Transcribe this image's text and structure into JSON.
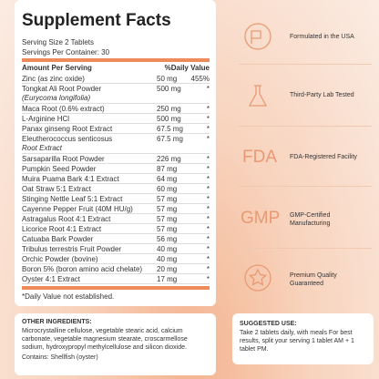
{
  "facts": {
    "title": "Supplement Facts",
    "serving_size": "Serving Size 2 Tablets",
    "servings": "Servings Per Container: 30",
    "header": {
      "amount": "Amount Per Serving",
      "dv": "%Daily Value"
    },
    "rows": [
      {
        "name": "Zinc (as zinc oxide)",
        "amount": "50 mg",
        "dv": "455%"
      },
      {
        "name": "Tongkat Ali Root Powder",
        "sub": "(Eurycoma longifolia)",
        "amount": "500 mg",
        "dv": "*"
      },
      {
        "name": "Maca Root (0.6% extract)",
        "amount": "250 mg",
        "dv": "*"
      },
      {
        "name": "L-Arginine HCl",
        "amount": "500 mg",
        "dv": "*"
      },
      {
        "name": "Panax ginseng Root Extract",
        "amount": "67.5 mg",
        "dv": "*"
      },
      {
        "name": "Eleutherococcus senticosus",
        "sub": "Root Extract",
        "amount": "67.5 mg",
        "dv": "*"
      },
      {
        "name": "Sarsaparilla Root Powder",
        "amount": "226 mg",
        "dv": "*"
      },
      {
        "name": "Pumpkin Seed Powder",
        "amount": "87 mg",
        "dv": "*"
      },
      {
        "name": "Muira Puama Bark 4:1 Extract",
        "amount": "64 mg",
        "dv": "*"
      },
      {
        "name": "Oat Straw 5:1 Extract",
        "amount": "60 mg",
        "dv": "*"
      },
      {
        "name": "Stinging Nettle Leaf 5:1 Extract",
        "amount": "57 mg",
        "dv": "*"
      },
      {
        "name": "Cayenne Pepper Fruit (40M HU/g)",
        "amount": "57 mg",
        "dv": "*"
      },
      {
        "name": "Astragalus Root 4:1 Extract",
        "amount": "57 mg",
        "dv": "*"
      },
      {
        "name": "Licorice Root 4:1 Extract",
        "amount": "57 mg",
        "dv": "*"
      },
      {
        "name": "Catuaba Bark Powder",
        "amount": "56 mg",
        "dv": "*"
      },
      {
        "name": "Tribulus terrestris Fruit Powder",
        "amount": "40 mg",
        "dv": "*"
      },
      {
        "name": "Orchic Powder (bovine)",
        "amount": "40 mg",
        "dv": "*"
      },
      {
        "name": "Boron 5% (boron amino acid chelate)",
        "amount": "20 mg",
        "dv": "*"
      },
      {
        "name": "Oyster 4:1 Extract",
        "amount": "17 mg",
        "dv": "*"
      }
    ],
    "footnote": "*Daily Value not established."
  },
  "badges": [
    {
      "label": "Formulated in the USA"
    },
    {
      "label": "Third-Party Lab Tested"
    },
    {
      "icon": "FDA",
      "label": "FDA-Registered Facility"
    },
    {
      "icon": "GMP",
      "label": "GMP-Certified Manufacturing"
    },
    {
      "label": "Premium Quality Guaranteed"
    }
  ],
  "other": {
    "heading": "OTHER INGREDIENTS:",
    "text": "Microcrystalline cellulose, vegetable stearic acid, calcium carbonate, vegetable magnesium stearate, croscarmellose sodium, hydroxypropyl methylcellulose and silicon dioxide.",
    "contains": "Contains: Shellfish (oyster)"
  },
  "use": {
    "heading": "SUGGESTED USE:",
    "text": "Take 2 tablets daily, with meals For best results, split your serving 1 tablet AM + 1 tablet PM."
  }
}
